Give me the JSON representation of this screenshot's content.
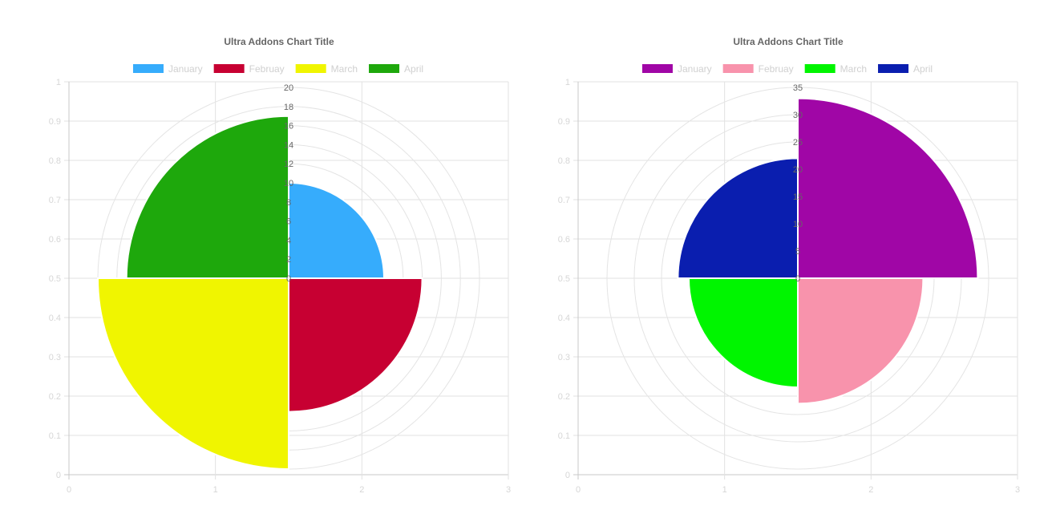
{
  "chart_data": [
    {
      "type": "polarArea",
      "title": "Ultra Addons Chart Title",
      "categories": [
        "January",
        "Februay",
        "March",
        "April"
      ],
      "values": [
        10,
        14,
        20,
        17
      ],
      "colors": [
        "#36acfc",
        "#c70032",
        "#f0f500",
        "#1ea80c"
      ],
      "radial_ticks": [
        "0",
        "2",
        "4",
        "6",
        "8",
        "10",
        "12",
        "14",
        "16",
        "18",
        "20"
      ],
      "radial_max": 20,
      "x_ticks": [
        "0",
        "1",
        "2",
        "3"
      ],
      "y_ticks": [
        "0",
        "0.1",
        "0.2",
        "0.3",
        "0.4",
        "0.5",
        "0.6",
        "0.7",
        "0.8",
        "0.9",
        "1"
      ],
      "xlim": [
        0,
        3
      ],
      "ylim": [
        0,
        1
      ],
      "legend_position": "top"
    },
    {
      "type": "polarArea",
      "title": "Ultra Addons Chart Title",
      "categories": [
        "January",
        "Februay",
        "March",
        "April"
      ],
      "values": [
        33,
        23,
        20,
        22
      ],
      "colors": [
        "#a006a6",
        "#f893ac",
        "#00f500",
        "#0a1eaf"
      ],
      "radial_ticks": [
        "0",
        "5",
        "10",
        "15",
        "20",
        "25",
        "30",
        "35"
      ],
      "radial_max": 35,
      "x_ticks": [
        "0",
        "1",
        "2",
        "3"
      ],
      "y_ticks": [
        "0",
        "0.1",
        "0.2",
        "0.3",
        "0.4",
        "0.5",
        "0.6",
        "0.7",
        "0.8",
        "0.9",
        "1"
      ],
      "xlim": [
        0,
        3
      ],
      "ylim": [
        0,
        1
      ],
      "legend_position": "top"
    }
  ]
}
